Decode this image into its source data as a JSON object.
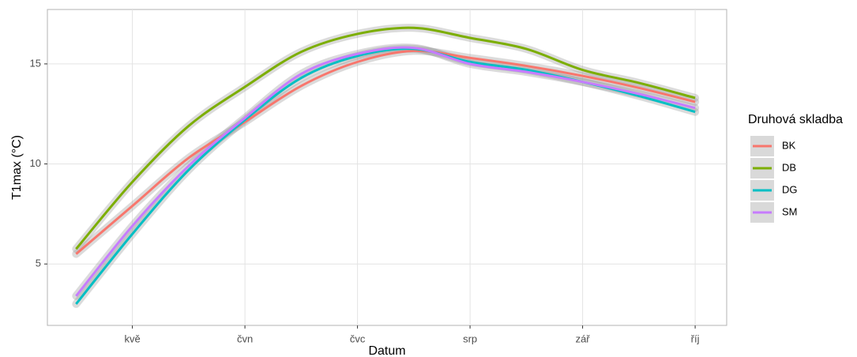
{
  "chart_data": {
    "type": "line",
    "x_label": "Datum",
    "y_label": "T1max (°C)",
    "legend_title": "Druhová skladba",
    "x": [
      4.5,
      5,
      5.5,
      6,
      6.5,
      7,
      7.5,
      8,
      8.5,
      9,
      9.5,
      10
    ],
    "series": [
      {
        "name": "BK",
        "color": "#f8766d",
        "values": [
          5.5,
          7.9,
          10.3,
          12.1,
          13.9,
          15.1,
          15.65,
          15.3,
          14.9,
          14.4,
          13.8,
          13.1
        ]
      },
      {
        "name": "DB",
        "color": "#7cae00",
        "values": [
          5.75,
          9.1,
          11.9,
          13.85,
          15.6,
          16.5,
          16.8,
          16.3,
          15.75,
          14.7,
          14.05,
          13.3
        ]
      },
      {
        "name": "DG",
        "color": "#00bfc4",
        "values": [
          3.0,
          6.5,
          9.7,
          12.2,
          14.3,
          15.4,
          15.75,
          15.1,
          14.7,
          14.1,
          13.4,
          12.6
        ]
      },
      {
        "name": "SM",
        "color": "#c77cff",
        "values": [
          3.4,
          6.9,
          9.9,
          12.3,
          14.5,
          15.5,
          15.8,
          15.0,
          14.6,
          14.1,
          13.5,
          12.8
        ]
      }
    ],
    "xlim": [
      4.245,
      10.28
    ],
    "xticks": [
      {
        "value": 5,
        "label": "kvě"
      },
      {
        "value": 6,
        "label": "čvn"
      },
      {
        "value": 7,
        "label": "čvc"
      },
      {
        "value": 8,
        "label": "srp"
      },
      {
        "value": 9,
        "label": "zář"
      },
      {
        "value": 10,
        "label": "říj"
      }
    ],
    "ylim": [
      1.93,
      17.72
    ],
    "yticks": [
      5,
      10,
      15
    ],
    "grid": true,
    "legend": "right"
  }
}
